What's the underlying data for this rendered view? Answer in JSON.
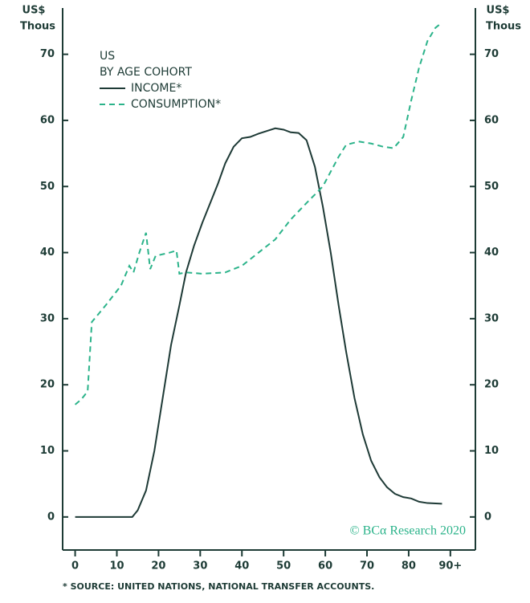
{
  "chart_data": {
    "type": "line",
    "ylabel": [
      "US$",
      "Thous"
    ],
    "y2label": [
      "US$",
      "Thous"
    ],
    "legend_title": [
      "US",
      "BY AGE COHORT"
    ],
    "footnote": "* SOURCE: UNITED NATIONS, NATIONAL TRANSFER ACCOUNTS.",
    "watermark": "© BCα Research 2020",
    "xlim": [
      -3,
      96
    ],
    "xticks": [
      0,
      10,
      20,
      30,
      40,
      50,
      60,
      70,
      80,
      {
        "value": 90,
        "label": "90+"
      }
    ],
    "ylim": [
      -5,
      77
    ],
    "yticks": [
      0,
      10,
      20,
      30,
      40,
      50,
      60,
      70
    ],
    "y2lim": [
      -5,
      77
    ],
    "y2ticks": [
      0,
      10,
      20,
      30,
      40,
      50,
      60,
      70
    ],
    "legend": "upper left",
    "series": [
      {
        "name": "INCOME*",
        "color": "#1e3a36",
        "dash": false,
        "x": [
          0,
          13.7,
          15,
          17,
          19,
          21,
          23,
          25,
          26.6,
          28.5,
          30.5,
          32.4,
          34.3,
          36,
          38,
          40,
          42,
          44,
          48,
          50,
          51.7,
          53.6,
          55.5,
          57.5,
          59.4,
          61.3,
          63.2,
          65,
          67,
          69,
          71,
          73,
          74.8,
          76.7,
          78.7,
          80.6,
          82.5,
          84.5,
          88
        ],
        "values": [
          0,
          0,
          1,
          4,
          10,
          18,
          26,
          32,
          37,
          41,
          44.5,
          47.5,
          50.5,
          53.5,
          56,
          57.3,
          57.5,
          58,
          58.8,
          58.6,
          58.2,
          58.1,
          57,
          53,
          47,
          40,
          32,
          25,
          18,
          12.5,
          8.5,
          6,
          4.5,
          3.5,
          3,
          2.8,
          2.3,
          2.1,
          2
        ]
      },
      {
        "name": "CONSUMPTION*",
        "color": "#2bb38a",
        "dash": true,
        "x": [
          0,
          1.5,
          3,
          4,
          7.3,
          11,
          13,
          14,
          15.4,
          17,
          18,
          19.3,
          22.7,
          24.3,
          25,
          26.6,
          30.5,
          36,
          40,
          44,
          48,
          51.7,
          55.5,
          59.4,
          63.2,
          65,
          68,
          71,
          74,
          76.4,
          78.7,
          80.6,
          82.5,
          84.5,
          86.4,
          88
        ],
        "values": [
          17,
          17.8,
          19,
          29.5,
          32,
          35,
          38,
          37,
          40,
          43,
          37.5,
          39.5,
          40,
          40.3,
          36.8,
          37,
          36.8,
          37,
          38,
          40,
          42,
          45,
          47.5,
          50,
          54.5,
          56.3,
          56.8,
          56.5,
          56,
          55.8,
          57.5,
          63,
          68,
          72,
          74,
          74.8
        ]
      }
    ]
  }
}
